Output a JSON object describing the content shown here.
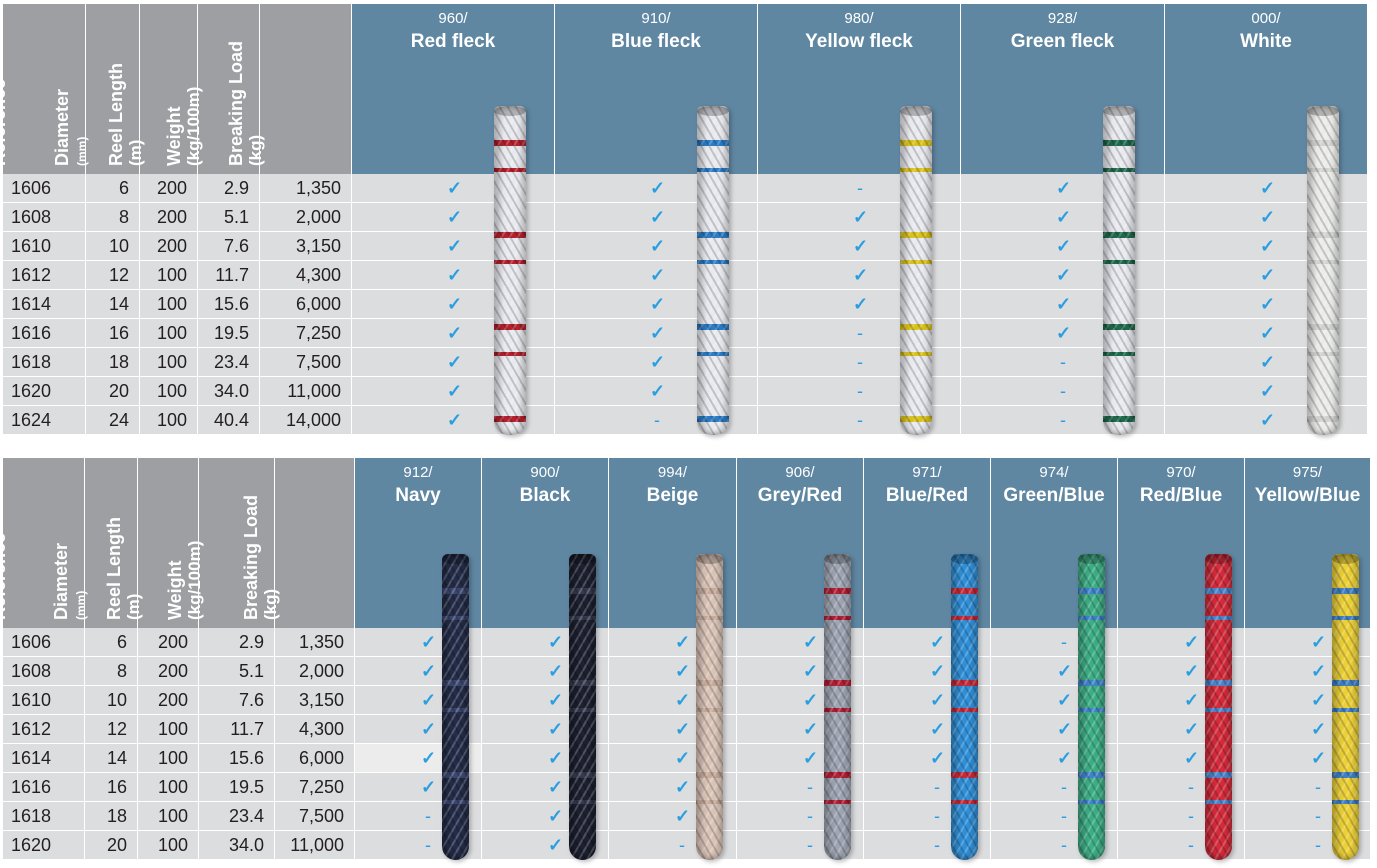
{
  "tables": [
    {
      "id": "t1",
      "headers": {
        "reference": "Reference",
        "diameter": "Diameter",
        "diameter_unit": "(mm)",
        "reel_length": "Reel Length",
        "reel_length_unit": "(m)",
        "weight": "Weight",
        "weight_unit": "(kg/100m)",
        "breaking_load": "Breaking Load",
        "breaking_load_unit": "(kg)"
      },
      "colors": [
        {
          "code": "960/",
          "name": "Red fleck",
          "rope_base": "#e9eaef",
          "rope_fleck": "#b5202e"
        },
        {
          "code": "910/",
          "name": "Blue fleck",
          "rope_base": "#e9eaef",
          "rope_fleck": "#2a7cc7"
        },
        {
          "code": "980/",
          "name": "Yellow fleck",
          "rope_base": "#e9eaef",
          "rope_fleck": "#d9c21b"
        },
        {
          "code": "928/",
          "name": "Green fleck",
          "rope_base": "#e9eaef",
          "rope_fleck": "#1e6a4d"
        },
        {
          "code": "000/",
          "name": "White",
          "rope_base": "#ecedea",
          "rope_fleck": "#d2d3cf"
        }
      ],
      "rows": [
        {
          "ref": "1606",
          "diameter": "6",
          "reel": "200",
          "weight": "2.9",
          "load": "1,350",
          "avail": [
            "✓",
            "✓",
            "-",
            "✓",
            "✓"
          ]
        },
        {
          "ref": "1608",
          "diameter": "8",
          "reel": "200",
          "weight": "5.1",
          "load": "2,000",
          "avail": [
            "✓",
            "✓",
            "✓",
            "✓",
            "✓"
          ]
        },
        {
          "ref": "1610",
          "diameter": "10",
          "reel": "200",
          "weight": "7.6",
          "load": "3,150",
          "avail": [
            "✓",
            "✓",
            "✓",
            "✓",
            "✓"
          ]
        },
        {
          "ref": "1612",
          "diameter": "12",
          "reel": "100",
          "weight": "11.7",
          "load": "4,300",
          "avail": [
            "✓",
            "✓",
            "✓",
            "✓",
            "✓"
          ]
        },
        {
          "ref": "1614",
          "diameter": "14",
          "reel": "100",
          "weight": "15.6",
          "load": "6,000",
          "avail": [
            "✓",
            "✓",
            "✓",
            "✓",
            "✓"
          ]
        },
        {
          "ref": "1616",
          "diameter": "16",
          "reel": "100",
          "weight": "19.5",
          "load": "7,250",
          "avail": [
            "✓",
            "✓",
            "-",
            "✓",
            "✓"
          ]
        },
        {
          "ref": "1618",
          "diameter": "18",
          "reel": "100",
          "weight": "23.4",
          "load": "7,500",
          "avail": [
            "✓",
            "✓",
            "-",
            "-",
            "✓"
          ]
        },
        {
          "ref": "1620",
          "diameter": "20",
          "reel": "100",
          "weight": "34.0",
          "load": "11,000",
          "avail": [
            "✓",
            "✓",
            "-",
            "-",
            "✓"
          ]
        },
        {
          "ref": "1624",
          "diameter": "24",
          "reel": "100",
          "weight": "40.4",
          "load": "14,000",
          "avail": [
            "✓",
            "-",
            "-",
            "-",
            "✓"
          ]
        }
      ]
    },
    {
      "id": "t2",
      "headers": {
        "reference": "Reference",
        "diameter": "Diameter",
        "diameter_unit": "(mm)",
        "reel_length": "Reel Length",
        "reel_length_unit": "(m)",
        "weight": "Weight",
        "weight_unit": "(kg/100m)",
        "breaking_load": "Breaking Load",
        "breaking_load_unit": "(kg)"
      },
      "colors": [
        {
          "code": "912/",
          "name": "Navy",
          "rope_base": "#232c48",
          "rope_fleck": "#3a4770"
        },
        {
          "code": "900/",
          "name": "Black",
          "rope_base": "#1c2030",
          "rope_fleck": "#353a4e"
        },
        {
          "code": "994/",
          "name": "Beige",
          "rope_base": "#dcc5b8",
          "rope_fleck": "#c7ab9b"
        },
        {
          "code": "906/",
          "name": "Grey/Red",
          "rope_base": "#9ea5b3",
          "rope_fleck": "#b51f35"
        },
        {
          "code": "971/",
          "name": "Blue/Red",
          "rope_base": "#2f8fd8",
          "rope_fleck": "#c62a3a"
        },
        {
          "code": "974/",
          "name": "Green/Blue",
          "rope_base": "#3cae86",
          "rope_fleck": "#3f83cc"
        },
        {
          "code": "970/",
          "name": "Red/Blue",
          "rope_base": "#d52b3b",
          "rope_fleck": "#4b86cd"
        },
        {
          "code": "975/",
          "name": "Yellow/Blue",
          "rope_base": "#ecd035",
          "rope_fleck": "#3e80c6"
        }
      ],
      "rows": [
        {
          "ref": "1606",
          "diameter": "6",
          "reel": "200",
          "weight": "2.9",
          "load": "1,350",
          "avail": [
            "✓",
            "✓",
            "✓",
            "✓",
            "✓",
            "-",
            "✓",
            "✓"
          ]
        },
        {
          "ref": "1608",
          "diameter": "8",
          "reel": "200",
          "weight": "5.1",
          "load": "2,000",
          "avail": [
            "✓",
            "✓",
            "✓",
            "✓",
            "✓",
            "✓",
            "✓",
            "✓"
          ]
        },
        {
          "ref": "1610",
          "diameter": "10",
          "reel": "200",
          "weight": "7.6",
          "load": "3,150",
          "avail": [
            "✓",
            "✓",
            "✓",
            "✓",
            "✓",
            "✓",
            "✓",
            "✓"
          ]
        },
        {
          "ref": "1612",
          "diameter": "12",
          "reel": "100",
          "weight": "11.7",
          "load": "4,300",
          "avail": [
            "✓",
            "✓",
            "✓",
            "✓",
            "✓",
            "✓",
            "✓",
            "✓"
          ]
        },
        {
          "ref": "1614",
          "diameter": "14",
          "reel": "100",
          "weight": "15.6",
          "load": "6,000",
          "avail": [
            "✓",
            "✓",
            "✓",
            "✓",
            "✓",
            "✓",
            "✓",
            "✓"
          ],
          "highlight": true
        },
        {
          "ref": "1616",
          "diameter": "16",
          "reel": "100",
          "weight": "19.5",
          "load": "7,250",
          "avail": [
            "✓",
            "✓",
            "✓",
            "-",
            "-",
            "-",
            "-",
            "-"
          ]
        },
        {
          "ref": "1618",
          "diameter": "18",
          "reel": "100",
          "weight": "23.4",
          "load": "7,500",
          "avail": [
            "-",
            "✓",
            "✓",
            "-",
            "-",
            "-",
            "-",
            "-"
          ]
        },
        {
          "ref": "1620",
          "diameter": "20",
          "reel": "100",
          "weight": "34.0",
          "load": "11,000",
          "avail": [
            "-",
            "✓",
            "-",
            "-",
            "-",
            "-",
            "-",
            "-"
          ]
        }
      ]
    }
  ]
}
